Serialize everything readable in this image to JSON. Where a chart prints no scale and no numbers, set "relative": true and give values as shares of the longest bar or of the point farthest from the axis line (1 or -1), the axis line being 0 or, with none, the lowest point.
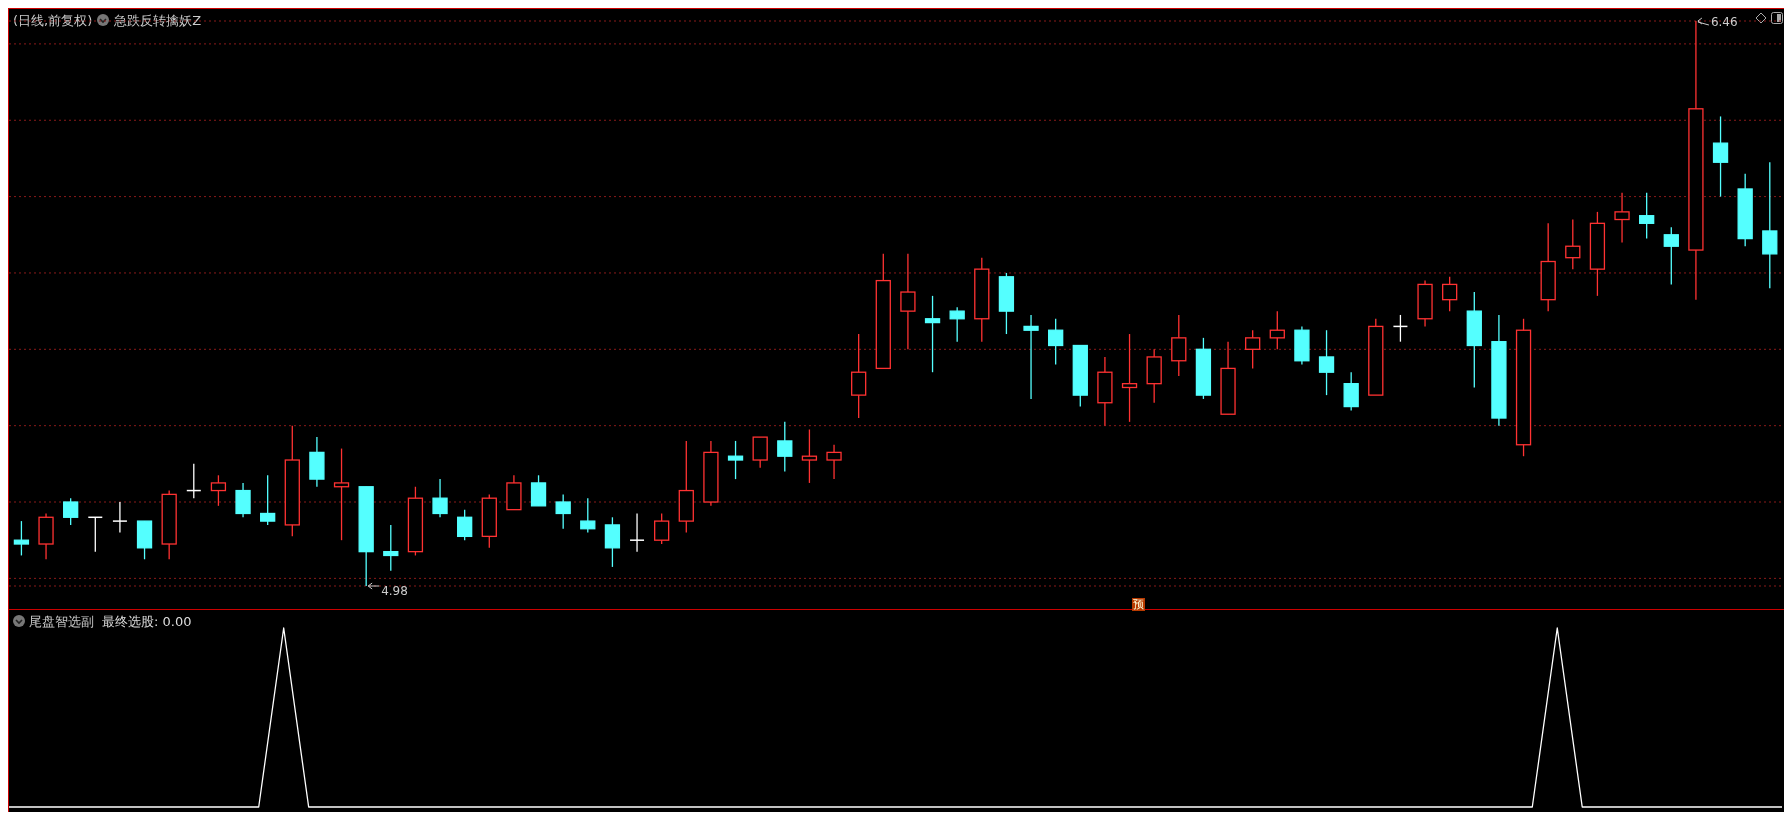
{
  "chart_data": [
    {
      "type": "candlestick",
      "title": "(日线,前复权)",
      "subtitle": "急跌反转擒妖Z",
      "categories": [
        null,
        null,
        null,
        null,
        null,
        null,
        null,
        null,
        null,
        null,
        null,
        null,
        null,
        null,
        null,
        null,
        null,
        null,
        null,
        null,
        null,
        null,
        null,
        null,
        null,
        null,
        null,
        null,
        null,
        null,
        null,
        null,
        null,
        null,
        null,
        null,
        null,
        null,
        null,
        null,
        null,
        null,
        null,
        null,
        null,
        null,
        null,
        null,
        null,
        null,
        null,
        null,
        null,
        null,
        null,
        null,
        null,
        null,
        null,
        null,
        null,
        null,
        null,
        null,
        null,
        null,
        null,
        null,
        null,
        null,
        null,
        null
      ],
      "ohlc": [
        [
          5.1,
          5.15,
          5.06,
          5.09
        ],
        [
          5.09,
          5.17,
          5.05,
          5.16
        ],
        [
          5.2,
          5.21,
          5.14,
          5.16
        ],
        [
          5.16,
          5.16,
          5.07,
          5.16
        ],
        [
          5.15,
          5.2,
          5.12,
          5.15
        ],
        [
          5.15,
          5.15,
          5.05,
          5.08
        ],
        [
          5.09,
          5.23,
          5.05,
          5.22
        ],
        [
          5.23,
          5.3,
          5.21,
          5.23
        ],
        [
          5.23,
          5.27,
          5.19,
          5.25
        ],
        [
          5.23,
          5.25,
          5.16,
          5.17
        ],
        [
          5.17,
          5.27,
          5.14,
          5.15
        ],
        [
          5.14,
          5.4,
          5.11,
          5.31
        ],
        [
          5.33,
          5.37,
          5.24,
          5.26
        ],
        [
          5.24,
          5.34,
          5.1,
          5.25
        ],
        [
          5.24,
          5.24,
          4.98,
          5.07
        ],
        [
          5.07,
          5.14,
          5.02,
          5.06
        ],
        [
          5.07,
          5.24,
          5.06,
          5.21
        ],
        [
          5.21,
          5.26,
          5.16,
          5.17
        ],
        [
          5.16,
          5.18,
          5.1,
          5.11
        ],
        [
          5.11,
          5.22,
          5.08,
          5.21
        ],
        [
          5.18,
          5.27,
          5.18,
          5.25
        ],
        [
          5.25,
          5.27,
          5.19,
          5.19
        ],
        [
          5.2,
          5.22,
          5.13,
          5.17
        ],
        [
          5.15,
          5.21,
          5.12,
          5.13
        ],
        [
          5.14,
          5.16,
          5.03,
          5.08
        ],
        [
          5.1,
          5.17,
          5.07,
          5.1
        ],
        [
          5.1,
          5.17,
          5.09,
          5.15
        ],
        [
          5.15,
          5.36,
          5.12,
          5.23
        ],
        [
          5.2,
          5.36,
          5.19,
          5.33
        ],
        [
          5.32,
          5.36,
          5.26,
          5.31
        ],
        [
          5.31,
          5.37,
          5.29,
          5.37
        ],
        [
          5.36,
          5.41,
          5.28,
          5.32
        ],
        [
          5.31,
          5.39,
          5.25,
          5.32
        ],
        [
          5.31,
          5.35,
          5.26,
          5.33
        ],
        [
          5.48,
          5.64,
          5.42,
          5.54
        ],
        [
          5.55,
          5.85,
          5.55,
          5.78
        ],
        [
          5.7,
          5.85,
          5.6,
          5.75
        ],
        [
          5.68,
          5.74,
          5.54,
          5.67
        ],
        [
          5.7,
          5.71,
          5.62,
          5.68
        ],
        [
          5.68,
          5.84,
          5.62,
          5.81
        ],
        [
          5.79,
          5.8,
          5.64,
          5.7
        ],
        [
          5.66,
          5.69,
          5.47,
          5.65
        ],
        [
          5.65,
          5.68,
          5.56,
          5.61
        ],
        [
          5.61,
          5.61,
          5.45,
          5.48
        ],
        [
          5.46,
          5.58,
          5.4,
          5.54
        ],
        [
          5.5,
          5.64,
          5.41,
          5.51
        ],
        [
          5.51,
          5.6,
          5.46,
          5.58
        ],
        [
          5.57,
          5.69,
          5.53,
          5.63
        ],
        [
          5.6,
          5.63,
          5.47,
          5.48
        ],
        [
          5.43,
          5.62,
          5.43,
          5.55
        ],
        [
          5.6,
          5.65,
          5.55,
          5.63
        ],
        [
          5.63,
          5.7,
          5.6,
          5.65
        ],
        [
          5.65,
          5.66,
          5.56,
          5.57
        ],
        [
          5.58,
          5.65,
          5.48,
          5.54
        ],
        [
          5.51,
          5.54,
          5.44,
          5.45
        ],
        [
          5.48,
          5.68,
          5.48,
          5.66
        ],
        [
          5.66,
          5.69,
          5.62,
          5.66
        ],
        [
          5.68,
          5.78,
          5.66,
          5.77
        ],
        [
          5.73,
          5.79,
          5.7,
          5.77
        ],
        [
          5.7,
          5.75,
          5.5,
          5.61
        ],
        [
          5.62,
          5.69,
          5.4,
          5.42
        ],
        [
          5.35,
          5.68,
          5.32,
          5.65
        ],
        [
          5.73,
          5.93,
          5.7,
          5.83
        ],
        [
          5.84,
          5.94,
          5.81,
          5.87
        ],
        [
          5.81,
          5.96,
          5.74,
          5.93
        ],
        [
          5.94,
          6.01,
          5.88,
          5.96
        ],
        [
          5.95,
          6.01,
          5.89,
          5.93
        ],
        [
          5.9,
          5.92,
          5.77,
          5.87
        ],
        [
          5.86,
          6.46,
          5.73,
          6.23
        ],
        [
          6.14,
          6.21,
          6.0,
          6.09
        ],
        [
          6.02,
          6.06,
          5.87,
          5.89
        ],
        [
          5.91,
          6.09,
          5.76,
          5.85
        ]
      ],
      "colors": [
        "#54ffff",
        "#ff3232",
        "#54ffff",
        "#ffffff",
        "#ffffff",
        "#54ffff",
        "#ff3232",
        "#ffffff",
        "#ff3232",
        "#54ffff",
        "#54ffff",
        "#ff3232",
        "#54ffff",
        "#ff3232",
        "#54ffff",
        "#54ffff",
        "#ff3232",
        "#54ffff",
        "#54ffff",
        "#ff3232",
        "#ff3232",
        "#54ffff",
        "#54ffff",
        "#54ffff",
        "#54ffff",
        "#ffffff",
        "#ff3232",
        "#ff3232",
        "#ff3232",
        "#54ffff",
        "#ff3232",
        "#54ffff",
        "#ff3232",
        "#ff3232",
        "#ff3232",
        "#ff3232",
        "#ff3232",
        "#54ffff",
        "#54ffff",
        "#ff3232",
        "#54ffff",
        "#54ffff",
        "#54ffff",
        "#54ffff",
        "#ff3232",
        "#ff3232",
        "#ff3232",
        "#ff3232",
        "#54ffff",
        "#ff3232",
        "#ff3232",
        "#ff3232",
        "#54ffff",
        "#54ffff",
        "#54ffff",
        "#ff3232",
        "#ffffff",
        "#ff3232",
        "#ff3232",
        "#54ffff",
        "#54ffff",
        "#ff3232",
        "#ff3232",
        "#ff3232",
        "#ff3232",
        "#ff3232",
        "#54ffff",
        "#54ffff",
        "#ff3232",
        "#54ffff",
        "#54ffff",
        "#54ffff"
      ],
      "ylim": [
        4.98,
        6.46
      ],
      "yticks": [
        {
          "value": 5.0,
          "label": null
        },
        {
          "value": 5.2,
          "label": null
        },
        {
          "value": 5.4,
          "label": null
        },
        {
          "value": 5.6,
          "label": null
        },
        {
          "value": 5.8,
          "label": null
        },
        {
          "value": 6.0,
          "label": null
        },
        {
          "value": 6.2,
          "label": null
        },
        {
          "value": 6.4,
          "label": null
        }
      ],
      "grid": "y",
      "tick_labels": false,
      "annotations": [
        "6.46",
        "4.98",
        "预"
      ]
    },
    {
      "type": "line",
      "title": "尾盘智选副",
      "categories": [
        null,
        null,
        null,
        null,
        null,
        null,
        null,
        null,
        null,
        null,
        null,
        null,
        null,
        null,
        null,
        null,
        null,
        null,
        null,
        null,
        null,
        null,
        null,
        null,
        null,
        null,
        null,
        null,
        null,
        null,
        null,
        null,
        null,
        null,
        null,
        null,
        null,
        null,
        null,
        null,
        null,
        null,
        null,
        null,
        null,
        null,
        null,
        null,
        null,
        null,
        null,
        null,
        null,
        null,
        null,
        null,
        null,
        null,
        null,
        null,
        null,
        null,
        null,
        null,
        null,
        null,
        null,
        null,
        null,
        null,
        null,
        null
      ],
      "series": [
        {
          "name": "最终选股: 0.00",
          "color": "#ffffff",
          "values": [
            0,
            0,
            0,
            0,
            0,
            0,
            0,
            0,
            0,
            0,
            0,
            1,
            0,
            0,
            0,
            0,
            0,
            0,
            0,
            0,
            0,
            0,
            0,
            0,
            0,
            0,
            0,
            0,
            0,
            0,
            0,
            0,
            0,
            0,
            0,
            0,
            0,
            0,
            0,
            0,
            0,
            0,
            0,
            0,
            0,
            0,
            0,
            0,
            0,
            0,
            0,
            0,
            0,
            0,
            0,
            0,
            0,
            0,
            0,
            0,
            0,
            0,
            1,
            0,
            0,
            0,
            0,
            0,
            0,
            0,
            0,
            0
          ]
        }
      ],
      "relative": true
    }
  ]
}
